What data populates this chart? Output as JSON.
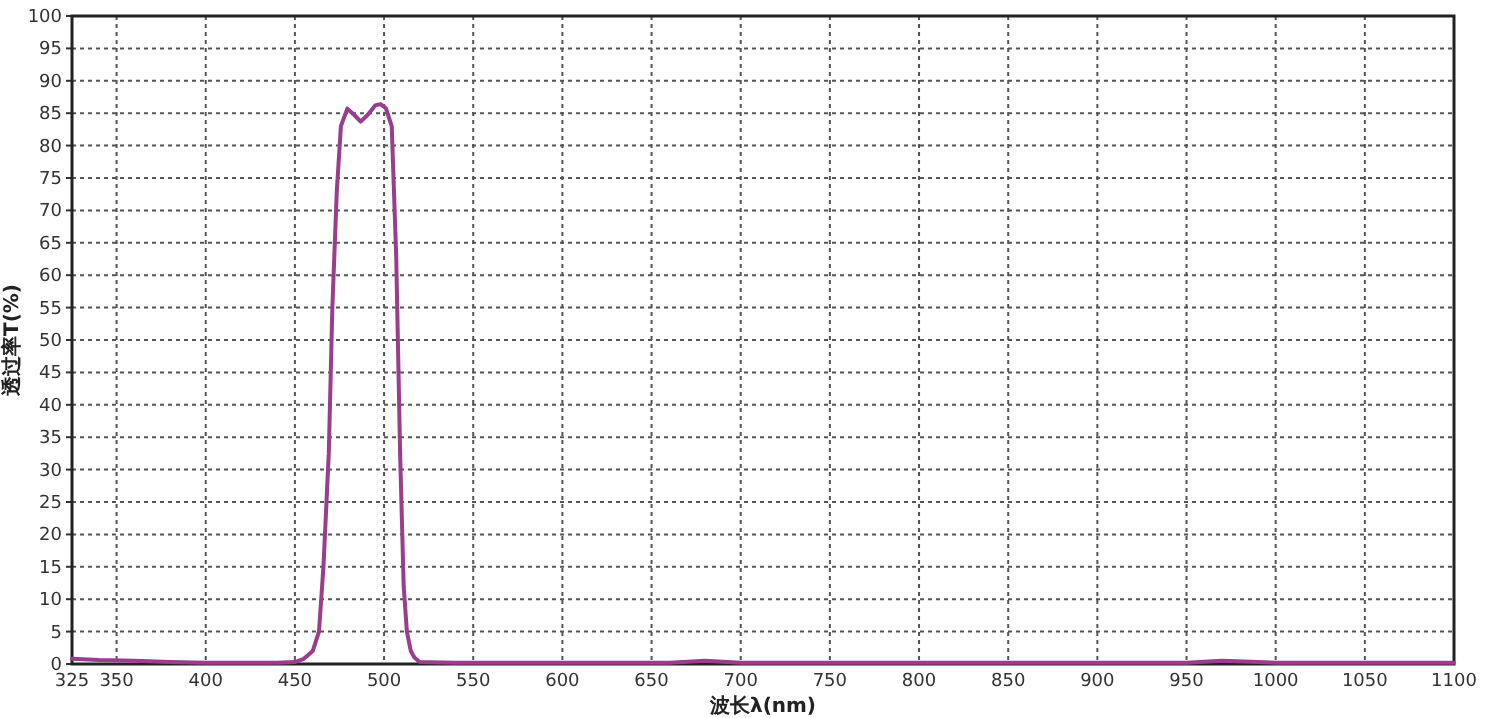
{
  "chart_data": {
    "type": "line",
    "xlabel": "波长λ(nm)",
    "ylabel": "透过率T(%)",
    "series": [
      {
        "color": "#993d8c",
        "x": [
          325,
          340,
          360,
          380,
          400,
          420,
          440,
          450,
          455,
          460,
          463.5,
          466,
          469,
          471,
          473.5,
          475.8,
          479.4,
          483,
          486.9,
          491,
          495,
          498,
          501,
          504.3,
          506.8,
          509,
          511,
          512.8,
          515,
          517,
          520,
          540,
          600,
          660,
          680,
          700,
          750,
          800,
          850,
          900,
          950,
          970,
          1000,
          1050,
          1100
        ],
        "values": [
          0.8,
          0.6,
          0.5,
          0.3,
          0.2,
          0.2,
          0.2,
          0.3,
          0.8,
          2,
          5,
          15,
          32.5,
          55,
          73,
          83,
          85.7,
          84.8,
          83.7,
          84.8,
          86.2,
          86.4,
          85.8,
          83,
          63,
          32.5,
          12,
          5,
          2,
          1,
          0.3,
          0.2,
          0.2,
          0.2,
          0.5,
          0.2,
          0.2,
          0.2,
          0.2,
          0.2,
          0.2,
          0.5,
          0.2,
          0.2,
          0.2
        ]
      }
    ],
    "xlim": [
      325,
      1100
    ],
    "xticks": [
      325,
      350,
      400,
      450,
      500,
      550,
      600,
      650,
      700,
      750,
      800,
      850,
      900,
      950,
      1000,
      1050,
      1100
    ],
    "ylim": [
      0,
      100
    ],
    "yticks": [
      0,
      5,
      10,
      15,
      20,
      25,
      30,
      35,
      40,
      45,
      50,
      55,
      60,
      65,
      70,
      75,
      80,
      85,
      90,
      95,
      100
    ],
    "grid": true,
    "line_style": "solid",
    "marker": "none"
  }
}
